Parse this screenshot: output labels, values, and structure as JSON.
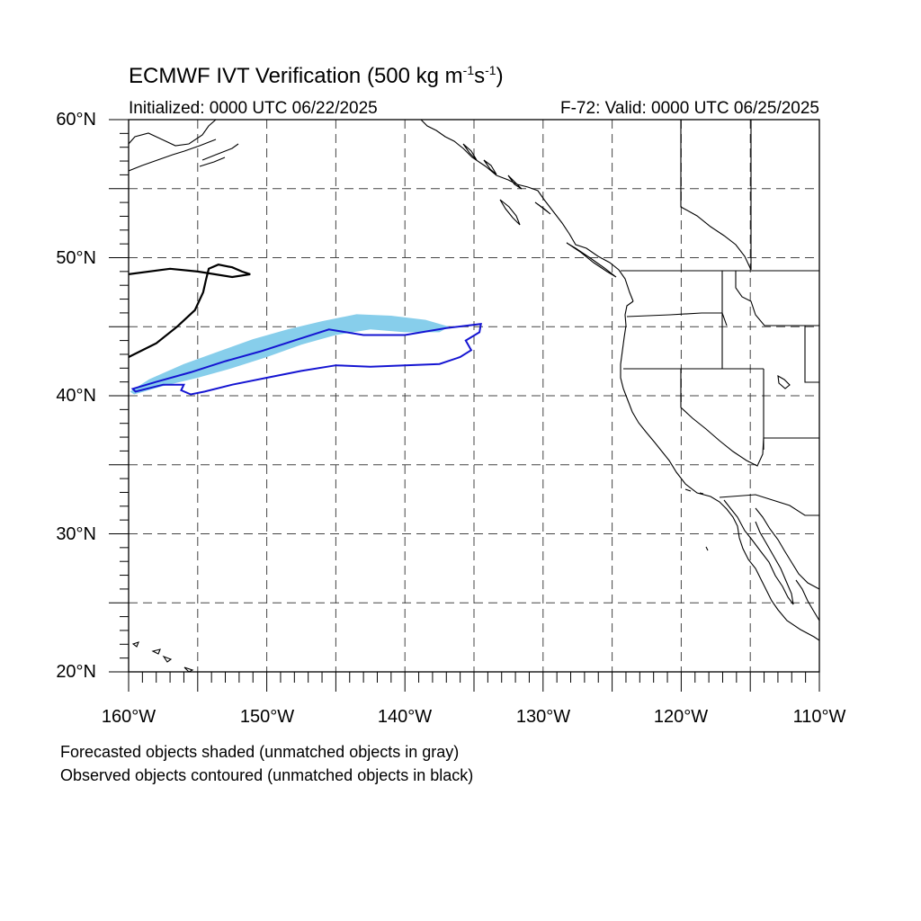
{
  "title": {
    "main": "ECMWF IVT Verification (500 kg m",
    "exp1": "-1",
    "mid": "s",
    "exp2": "-1",
    "close": ")"
  },
  "subtitle_left": "Initialized: 0000 UTC 06/22/2025",
  "subtitle_right": "F-72: Valid: 0000 UTC 06/25/2025",
  "notes": [
    "Forecasted objects shaded (unmatched objects in gray)",
    "Observed objects contoured (unmatched objects in black)"
  ],
  "axes": {
    "lat_labels": [
      "60°N",
      "50°N",
      "40°N",
      "30°N",
      "20°N"
    ],
    "lon_labels": [
      "160°W",
      "150°W",
      "140°W",
      "130°W",
      "120°W",
      "110°W"
    ],
    "lat_range": [
      20,
      60
    ],
    "lon_range": [
      -160,
      -110
    ],
    "gridline_interval_deg": 5
  },
  "colors": {
    "forecast_shade": "#87ceeb",
    "observed_contour": "#1515d2",
    "unmatched_observed": "#000000",
    "coastline": "#000000",
    "grid": "#444444"
  },
  "objects": {
    "forecast_matched": {
      "description_shown": "shaded",
      "outline": [
        [
          -159.9,
          40.3
        ],
        [
          -158.5,
          41.2
        ],
        [
          -156,
          42.3
        ],
        [
          -153.5,
          43.2
        ],
        [
          -151,
          44.1
        ],
        [
          -148.5,
          44.8
        ],
        [
          -146,
          45.4
        ],
        [
          -143.5,
          45.9
        ],
        [
          -141,
          45.8
        ],
        [
          -138.5,
          45.5
        ],
        [
          -136.8,
          45.0
        ],
        [
          -137.5,
          44.6
        ],
        [
          -140,
          44.6
        ],
        [
          -142.5,
          44.8
        ],
        [
          -145,
          44.4
        ],
        [
          -147.5,
          43.7
        ],
        [
          -150,
          42.8
        ],
        [
          -152.5,
          42.0
        ],
        [
          -155,
          41.3
        ],
        [
          -157.5,
          40.7
        ],
        [
          -159.6,
          40.1
        ]
      ]
    },
    "observed_matched": {
      "description_shown": "contoured",
      "outer": [
        [
          -159.7,
          40.5
        ],
        [
          -158,
          41.0
        ],
        [
          -155.5,
          41.7
        ],
        [
          -153,
          42.5
        ],
        [
          -150.5,
          43.2
        ],
        [
          -148,
          44.0
        ],
        [
          -145.5,
          44.8
        ],
        [
          -143,
          44.4
        ],
        [
          -140,
          44.4
        ],
        [
          -137,
          44.9
        ],
        [
          -134.5,
          45.2
        ],
        [
          -134.6,
          44.6
        ],
        [
          -135.6,
          44.0
        ],
        [
          -135.2,
          43.3
        ],
        [
          -136,
          42.8
        ],
        [
          -137.5,
          42.3
        ],
        [
          -140,
          42.2
        ],
        [
          -142.5,
          42.1
        ],
        [
          -145,
          42.2
        ],
        [
          -147.5,
          41.8
        ],
        [
          -150,
          41.3
        ],
        [
          -152.5,
          40.8
        ],
        [
          -154.5,
          40.3
        ],
        [
          -155.5,
          40.1
        ],
        [
          -156.2,
          40.4
        ],
        [
          -156,
          40.8
        ],
        [
          -157.5,
          40.8
        ],
        [
          -159.5,
          40.3
        ]
      ]
    },
    "observed_unmatched": {
      "description_shown": "black contour",
      "line": [
        [
          -160,
          42.8
        ],
        [
          -158,
          43.8
        ],
        [
          -156.5,
          45.0
        ],
        [
          -155.2,
          46.2
        ],
        [
          -154.6,
          47.5
        ],
        [
          -154.4,
          48.4
        ],
        [
          -154.2,
          49.2
        ],
        [
          -153.5,
          49.5
        ],
        [
          -152.5,
          49.3
        ],
        [
          -151.8,
          49.0
        ],
        [
          -151.2,
          48.8
        ],
        [
          -152.5,
          48.6
        ],
        [
          -155,
          49.0
        ],
        [
          -157,
          49.2
        ],
        [
          -160,
          48.8
        ]
      ]
    }
  }
}
